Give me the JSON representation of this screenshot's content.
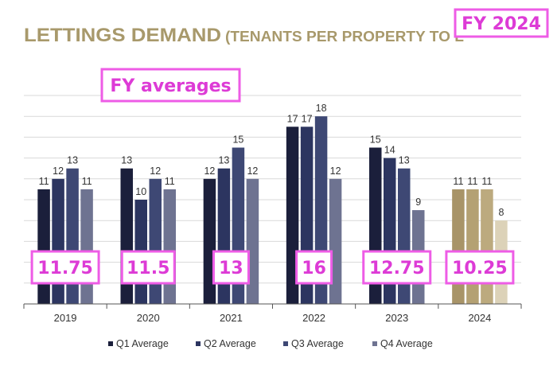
{
  "chart_data": {
    "type": "bar",
    "title": "LETTINGS DEMAND",
    "subtitle": "(TENANTS PER PROPERTY TO L",
    "categories": [
      "2019",
      "2020",
      "2021",
      "2022",
      "2023",
      "2024"
    ],
    "series": [
      {
        "name": "Q1 Average",
        "values": [
          11,
          13,
          12,
          17,
          15,
          11
        ]
      },
      {
        "name": "Q2 Average",
        "values": [
          12,
          10,
          13,
          17,
          14,
          11
        ]
      },
      {
        "name": "Q3 Average",
        "values": [
          13,
          12,
          15,
          18,
          13,
          11
        ]
      },
      {
        "name": "Q4 Average",
        "values": [
          11,
          11,
          12,
          12,
          9,
          8
        ]
      }
    ],
    "ylim": [
      0,
      20
    ],
    "grid": true,
    "legend_position": "bottom",
    "annotations": {
      "fy_label": "FY 2024",
      "averages_label": "FY averages",
      "year_averages": [
        "11.75",
        "11.5",
        "13",
        "16",
        "12.75",
        "10.25"
      ]
    }
  },
  "colors": {
    "title": "#a8996b",
    "series": [
      "#1b1f3b",
      "#2c3560",
      "#3e4874",
      "#6e7391"
    ],
    "series_2024": [
      "#a89468",
      "#b4a173",
      "#bcaa7e",
      "#dcd2b8"
    ],
    "annotation_border": "#ee5ce6",
    "annotation_text": "#dd3bd6",
    "grid": "#d9d9d9",
    "axis": "#555555",
    "label": "#333333"
  }
}
